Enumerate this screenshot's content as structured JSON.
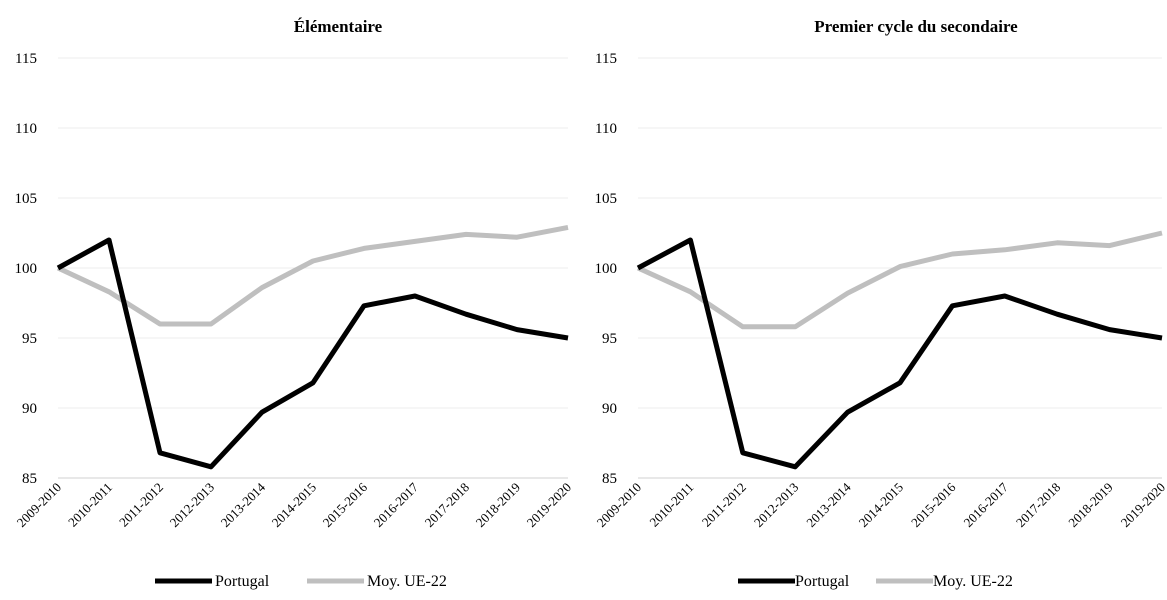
{
  "chart_data": [
    {
      "type": "line",
      "title": "Élémentaire",
      "xlabel": "",
      "ylabel": "",
      "ylim": [
        85,
        115
      ],
      "yticks": [
        85,
        90,
        95,
        100,
        105,
        110,
        115
      ],
      "categories": [
        "2009-2010",
        "2010-2011",
        "2011-2012",
        "2012-2013",
        "2013-2014",
        "2014-2015",
        "2015-2016",
        "2016-2017",
        "2017-2018",
        "2018-2019",
        "2019-2020"
      ],
      "series": [
        {
          "name": "Portugal",
          "color": "#000000",
          "values": [
            100,
            102,
            86.8,
            85.8,
            89.7,
            91.8,
            97.3,
            98.0,
            96.7,
            95.6,
            95.0
          ]
        },
        {
          "name": "Moy. UE-22",
          "color": "#bfbfbf",
          "values": [
            100,
            98.3,
            96.0,
            96.0,
            98.6,
            100.5,
            101.4,
            101.9,
            102.4,
            102.2,
            102.9
          ]
        }
      ],
      "grid": true,
      "legend": "bottom"
    },
    {
      "type": "line",
      "title": "Premier cycle du secondaire",
      "xlabel": "",
      "ylabel": "",
      "ylim": [
        85,
        115
      ],
      "yticks": [
        85,
        90,
        95,
        100,
        105,
        110,
        115
      ],
      "categories": [
        "2009-2010",
        "2010-2011",
        "2011-2012",
        "2012-2013",
        "2013-2014",
        "2014-2015",
        "2015-2016",
        "2016-2017",
        "2017-2018",
        "2018-2019",
        "2019-2020"
      ],
      "series": [
        {
          "name": "Portugal",
          "color": "#000000",
          "values": [
            100,
            102,
            86.8,
            85.8,
            89.7,
            91.8,
            97.3,
            98.0,
            96.7,
            95.6,
            95.0
          ]
        },
        {
          "name": "Moy. UE-22",
          "color": "#bfbfbf",
          "values": [
            100,
            98.3,
            95.8,
            95.8,
            98.2,
            100.1,
            101.0,
            101.3,
            101.8,
            101.6,
            102.5
          ]
        }
      ],
      "grid": true,
      "legend": "bottom"
    }
  ]
}
